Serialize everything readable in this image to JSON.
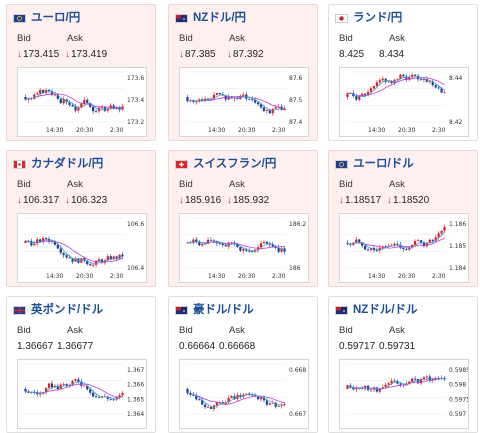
{
  "cards": [
    {
      "pair": "ユーロ/円",
      "flag": "eu-jp-flag-icon",
      "state": "up",
      "bid_label": "Bid",
      "ask_label": "Ask",
      "bid": "173.415",
      "ask": "173.419",
      "down": true,
      "y_ticks": [
        "173.6",
        "173.4",
        "173.2"
      ],
      "x_ticks": [
        "14:30",
        "20:30",
        "2:30"
      ]
    },
    {
      "pair": "NZドル/円",
      "flag": "nz-jp-flag-icon",
      "state": "up",
      "bid_label": "Bid",
      "ask_label": "Ask",
      "bid": "87.385",
      "ask": "87.392",
      "down": true,
      "y_ticks": [
        "87.6",
        "87.5",
        "87.4"
      ],
      "x_ticks": [
        "14:30",
        "20:30",
        "2:30"
      ]
    },
    {
      "pair": "ランド/円",
      "flag": "za-jp-flag-icon",
      "state": "flat",
      "bid_label": "Bid",
      "ask_label": "Ask",
      "bid": "8.425",
      "ask": "8.434",
      "down": false,
      "y_ticks": [
        "8.44",
        "8.42"
      ],
      "x_ticks": [
        "14:30",
        "20:30",
        "2:30"
      ]
    },
    {
      "pair": "カナダドル/円",
      "flag": "ca-jp-flag-icon",
      "state": "up",
      "bid_label": "Bid",
      "ask_label": "Ask",
      "bid": "106.317",
      "ask": "106.323",
      "down": true,
      "y_ticks": [
        "106.6",
        "106.4"
      ],
      "x_ticks": [
        "14:30",
        "20:30",
        "2:30"
      ]
    },
    {
      "pair": "スイスフラン/円",
      "flag": "ch-jp-flag-icon",
      "state": "up",
      "bid_label": "Bid",
      "ask_label": "Ask",
      "bid": "185.916",
      "ask": "185.932",
      "down": true,
      "y_ticks": [
        "186.2",
        "186"
      ],
      "x_ticks": [
        "14:30",
        "20:30",
        "2:30"
      ]
    },
    {
      "pair": "ユーロ/ドル",
      "flag": "eu-us-flag-icon",
      "state": "up",
      "bid_label": "Bid",
      "ask_label": "Ask",
      "bid": "1.18517",
      "ask": "1.18520",
      "down": true,
      "y_ticks": [
        "1.186",
        "1.185",
        "1.184"
      ],
      "x_ticks": [
        "14:30",
        "20:30",
        "2:30"
      ]
    },
    {
      "pair": "英ポンド/ドル",
      "flag": "gb-us-flag-icon",
      "state": "flat",
      "bid_label": "Bid",
      "ask_label": "Ask",
      "bid": "1.36667",
      "ask": "1.36677",
      "down": false,
      "y_ticks": [
        "1.367",
        "1.366",
        "1.365",
        "1.364"
      ],
      "x_ticks": []
    },
    {
      "pair": "豪ドル/ドル",
      "flag": "au-us-flag-icon",
      "state": "flat",
      "bid_label": "Bid",
      "ask_label": "Ask",
      "bid": "0.66664",
      "ask": "0.66668",
      "down": false,
      "y_ticks": [
        "0.668",
        "0.667"
      ],
      "x_ticks": []
    },
    {
      "pair": "NZドル/ドル",
      "flag": "nz-us-flag-icon",
      "state": "flat",
      "bid_label": "Bid",
      "ask_label": "Ask",
      "bid": "0.59717",
      "ask": "0.59731",
      "down": false,
      "y_ticks": [
        "0.5985",
        "0.598",
        "0.5975",
        "0.597"
      ],
      "x_ticks": []
    }
  ],
  "colors": {
    "up": "#e02020",
    "down": "#1a3f9c",
    "ma1": "#c83ad2",
    "ma2": "#3aa3c8",
    "down_arrow": "#d23030"
  }
}
